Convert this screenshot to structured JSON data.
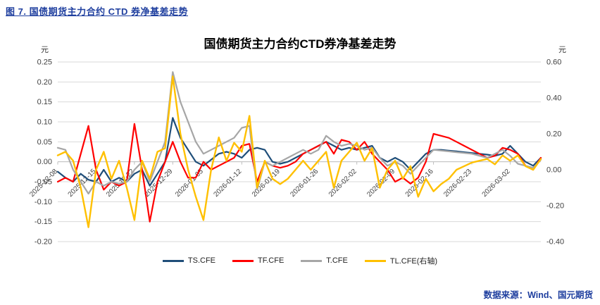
{
  "caption": "图 7.  国债期货主力合约 CTD 券净基差走势",
  "source": "数据来源：Wind、国元期货",
  "chart_data": {
    "type": "line",
    "title": "国债期货主力合约CTD券净基差走势",
    "left_unit": "元",
    "right_unit": "元",
    "grid": true,
    "legend_position": "bottom",
    "left_axis": {
      "max": 0.25,
      "min": -0.2,
      "ticks": [
        0.25,
        0.2,
        0.15,
        0.1,
        0.05,
        0.0,
        -0.05,
        -0.1,
        -0.15,
        -0.2
      ]
    },
    "right_axis": {
      "max": 0.6,
      "min": -0.4,
      "ticks": [
        0.6,
        0.4,
        0.2,
        0.0,
        -0.2,
        -0.4
      ]
    },
    "dates": [
      "2025-12-08",
      "2025-12-09",
      "2025-12-10",
      "2025-12-11",
      "2025-12-12",
      "2025-12-15",
      "2025-12-16",
      "2025-12-17",
      "2025-12-18",
      "2025-12-19",
      "2025-12-22",
      "2025-12-23",
      "2025-12-24",
      "2025-12-25",
      "2025-12-26",
      "2025-12-29",
      "2025-12-30",
      "2025-12-31",
      "2026-01-02",
      "2026-01-05",
      "2026-01-06",
      "2026-01-07",
      "2026-01-08",
      "2026-01-09",
      "2026-01-12",
      "2026-01-13",
      "2026-01-14",
      "2026-01-15",
      "2026-01-16",
      "2026-01-19",
      "2026-01-20",
      "2026-01-21",
      "2026-01-22",
      "2026-01-23",
      "2026-01-26",
      "2026-01-27",
      "2026-01-28",
      "2026-01-29",
      "2026-01-30",
      "2026-02-02",
      "2026-02-03",
      "2026-02-04",
      "2026-02-05",
      "2026-02-06",
      "2026-02-09",
      "2026-02-10",
      "2026-02-11",
      "2026-02-12",
      "2026-02-13",
      "2026-02-16",
      "2026-02-17",
      "2026-02-18",
      "2026-02-19",
      "2026-02-20",
      "2026-02-23",
      "2026-02-24",
      "2026-02-25",
      "2026-02-26",
      "2026-02-27",
      "2026-03-02",
      "2026-03-03",
      "2026-03-04",
      "2026-03-05",
      "2026-03-06"
    ],
    "x_ticks": [
      {
        "index": 0,
        "label": "2025-12-08"
      },
      {
        "index": 5,
        "label": "2025-12-15"
      },
      {
        "index": 10,
        "label": "2025-12-22"
      },
      {
        "index": 15,
        "label": "2025-12-29"
      },
      {
        "index": 19,
        "label": "2026-01-05"
      },
      {
        "index": 24,
        "label": "2026-01-12"
      },
      {
        "index": 29,
        "label": "2026-01-19"
      },
      {
        "index": 34,
        "label": "2026-01-26"
      },
      {
        "index": 39,
        "label": "2026-02-02"
      },
      {
        "index": 44,
        "label": "2026-02-09"
      },
      {
        "index": 49,
        "label": "2026-02-16"
      },
      {
        "index": 54,
        "label": "2026-02-23"
      },
      {
        "index": 59,
        "label": "2026-03-02"
      }
    ],
    "series": [
      {
        "name": "TS",
        "label": "TS.CFE",
        "color": "#1F4E79",
        "axis": "left",
        "values": [
          -0.025,
          -0.04,
          -0.05,
          -0.03,
          -0.045,
          -0.05,
          -0.02,
          -0.05,
          -0.04,
          -0.05,
          -0.03,
          -0.02,
          -0.06,
          -0.03,
          0.0,
          0.11,
          0.06,
          0.03,
          0.0,
          -0.01,
          0.005,
          0.02,
          0.025,
          0.02,
          0.01,
          0.03,
          0.035,
          0.03,
          0.0,
          -0.005,
          0.0,
          0.01,
          0.02,
          0.03,
          0.04,
          0.05,
          0.04,
          0.03,
          0.035,
          0.03,
          0.035,
          0.04,
          0.01,
          0.0,
          0.01,
          0.0,
          -0.02,
          0.0,
          0.02,
          0.03,
          0.03,
          0.028,
          0.026,
          0.024,
          0.022,
          0.02,
          0.018,
          0.015,
          0.02,
          0.04,
          0.02,
          0.0,
          -0.01,
          0.01
        ]
      },
      {
        "name": "TF",
        "label": "TF.CFE",
        "color": "#FF0000",
        "axis": "left",
        "values": [
          -0.05,
          -0.04,
          -0.05,
          0.02,
          0.09,
          -0.02,
          -0.07,
          -0.05,
          -0.06,
          -0.05,
          0.095,
          -0.02,
          -0.15,
          -0.05,
          0.0,
          0.05,
          0.0,
          -0.04,
          -0.04,
          0.0,
          -0.02,
          -0.01,
          0.0,
          0.01,
          0.04,
          0.045,
          -0.05,
          0.0,
          -0.01,
          -0.015,
          -0.01,
          0.0,
          0.02,
          0.03,
          0.04,
          0.05,
          0.02,
          0.055,
          0.05,
          0.03,
          0.05,
          0.02,
          0.0,
          -0.02,
          -0.05,
          -0.04,
          -0.055,
          -0.04,
          0.0,
          0.07,
          0.065,
          0.06,
          0.05,
          0.04,
          0.03,
          0.02,
          0.01,
          0.015,
          0.035,
          0.03,
          0.02,
          -0.01,
          -0.02,
          0.01
        ]
      },
      {
        "name": "T",
        "label": "T.CFE",
        "color": "#A6A6A6",
        "axis": "left",
        "values": [
          0.035,
          0.03,
          -0.02,
          -0.05,
          -0.08,
          -0.05,
          -0.06,
          -0.05,
          -0.055,
          -0.05,
          -0.02,
          0.0,
          -0.05,
          0.0,
          0.05,
          0.225,
          0.15,
          0.1,
          0.05,
          0.02,
          0.03,
          0.04,
          0.05,
          0.06,
          0.085,
          0.09,
          -0.07,
          0.0,
          -0.01,
          0.0,
          0.01,
          0.02,
          0.03,
          0.02,
          0.03,
          0.065,
          0.05,
          0.04,
          0.045,
          0.04,
          0.03,
          0.035,
          0.01,
          -0.01,
          0.0,
          -0.01,
          -0.03,
          -0.01,
          0.01,
          0.03,
          0.028,
          0.026,
          0.024,
          0.022,
          0.02,
          0.015,
          0.01,
          0.02,
          0.03,
          0.015,
          -0.005,
          -0.01,
          -0.015,
          0.005
        ]
      },
      {
        "name": "TL",
        "label": "TL.CFE(右轴)",
        "color": "#FFC000",
        "axis": "right",
        "values": [
          0.08,
          0.1,
          0.05,
          -0.1,
          -0.32,
          0.0,
          0.1,
          -0.05,
          0.05,
          -0.1,
          -0.28,
          0.05,
          -0.05,
          0.1,
          0.12,
          0.52,
          0.2,
          0.0,
          -0.15,
          -0.28,
          0.0,
          0.18,
          0.05,
          0.15,
          0.1,
          0.3,
          -0.1,
          0.05,
          -0.05,
          -0.08,
          -0.05,
          0.0,
          0.05,
          0.0,
          0.05,
          0.1,
          -0.1,
          0.05,
          0.1,
          0.15,
          0.05,
          0.12,
          -0.1,
          0.0,
          0.05,
          -0.05,
          0.02,
          -0.15,
          -0.05,
          -0.12,
          -0.08,
          -0.05,
          0.0,
          0.02,
          0.04,
          0.05,
          0.06,
          0.03,
          0.08,
          0.05,
          0.08,
          0.02,
          0.0,
          0.06
        ]
      }
    ]
  }
}
